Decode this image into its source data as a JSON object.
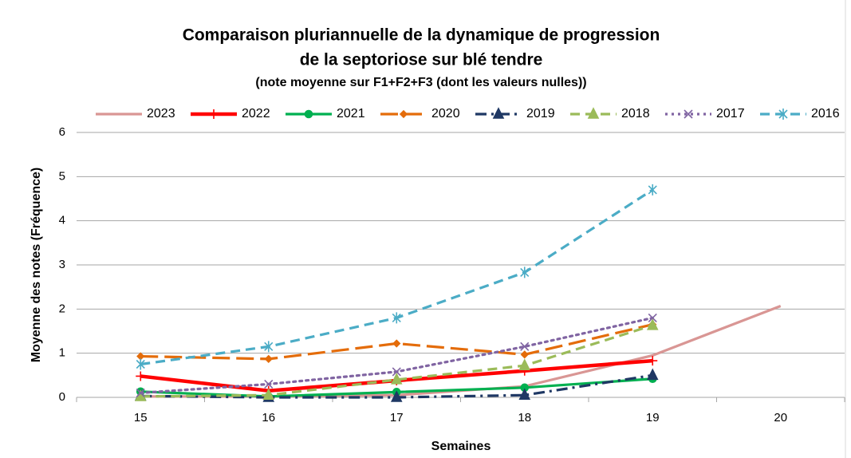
{
  "chart_data": {
    "type": "line",
    "title": "Comparaison pluriannuelle de la dynamique de progression",
    "title_line2": "de la septoriose sur blé tendre",
    "subtitle": "(note moyenne sur F1+F2+F3 (dont les valeurs nulles))",
    "xlabel": "Semaines",
    "ylabel": "Moyenne des notes (Fréquence)",
    "categories": [
      "15",
      "16",
      "17",
      "18",
      "19",
      "20"
    ],
    "ylim": [
      0,
      6
    ],
    "yticks": [
      0,
      1,
      2,
      3,
      4,
      5,
      6
    ],
    "grid": true,
    "legend": "top",
    "series": [
      {
        "name": "2023",
        "color": "#d99694",
        "dash": "solid",
        "marker": "none",
        "values": [
          0.02,
          0.02,
          0.05,
          0.25,
          0.95,
          2.07
        ]
      },
      {
        "name": "2022",
        "color": "#ff0000",
        "dash": "solid",
        "marker": "plus",
        "values": [
          0.48,
          0.15,
          0.38,
          0.6,
          0.83,
          null
        ]
      },
      {
        "name": "2021",
        "color": "#00b050",
        "dash": "solid",
        "marker": "circle",
        "values": [
          0.13,
          0.02,
          0.12,
          0.22,
          0.42,
          null
        ]
      },
      {
        "name": "2020",
        "color": "#e46c0a",
        "dash": "longdash",
        "marker": "diamond",
        "values": [
          0.93,
          0.87,
          1.22,
          0.97,
          1.65,
          null
        ]
      },
      {
        "name": "2019",
        "color": "#1f3864",
        "dash": "dashdot",
        "marker": "triangle",
        "values": [
          0.03,
          0,
          0,
          0.05,
          0.5,
          null
        ]
      },
      {
        "name": "2018",
        "color": "#9bbb59",
        "dash": "dash",
        "marker": "triangle",
        "values": [
          0.02,
          0.05,
          0.4,
          0.72,
          1.63,
          null
        ]
      },
      {
        "name": "2017",
        "color": "#8064a2",
        "dash": "dot",
        "marker": "x",
        "values": [
          0.1,
          0.3,
          0.58,
          1.15,
          1.8,
          null
        ]
      },
      {
        "name": "2016",
        "color": "#4bacc6",
        "dash": "dash",
        "marker": "asterisk",
        "values": [
          0.75,
          1.15,
          1.8,
          2.83,
          4.7,
          null
        ]
      }
    ]
  }
}
